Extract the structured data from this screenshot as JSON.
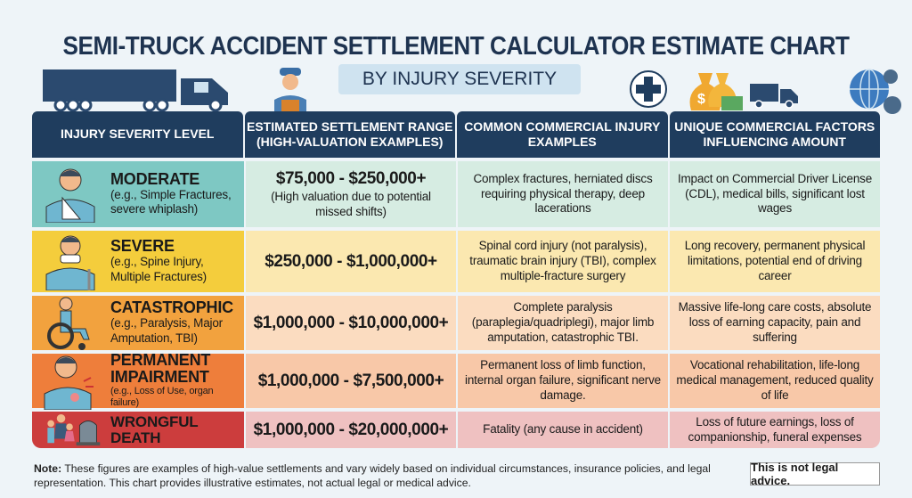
{
  "title": "SEMI-TRUCK ACCIDENT SETTLEMENT CALCULATOR ESTIMATE CHART",
  "subtitle": "BY INJURY SEVERITY",
  "headers": [
    "INJURY SEVERITY LEVEL",
    "ESTIMATED SETTLEMENT RANGE (HIGH-VALUATION EXAMPLES)",
    "COMMON COMMERCIAL INJURY EXAMPLES",
    "UNIQUE COMMERCIAL FACTORS INFLUENCING AMOUNT"
  ],
  "colors": {
    "header": "#1f3d5e",
    "title": "#1e3350"
  },
  "rows": [
    {
      "level": "MODERATE",
      "examples_short": "(e.g., Simple Fractures, severe whiplash)",
      "range": "$75,000 - $250,000+",
      "range_note": "(High valuation due to potential missed shifts)",
      "injuries": "Complex fractures, herniated discs requiring physical therapy, deep lacerations",
      "factors": "Impact on Commercial Driver License (CDL), medical bills, significant lost wages",
      "icon": "arm-sling-person-icon",
      "color": "#7ec8c3",
      "tint": "#d6ece2"
    },
    {
      "level": "SEVERE",
      "examples_short": "(e.g., Spine Injury, Multiple Fractures)",
      "range": "$250,000 - $1,000,000+",
      "range_note": "",
      "injuries": "Spinal cord injury (not paralysis), traumatic brain injury (TBI), complex multiple-fracture surgery",
      "factors": "Long recovery, permanent physical limitations, potential end of driving career",
      "icon": "neck-brace-person-icon",
      "color": "#f4cd3c",
      "tint": "#fbe8b0"
    },
    {
      "level": "CATASTROPHIC",
      "examples_short": "(e.g., Paralysis, Major Amputation, TBI)",
      "range": "$1,000,000 - $10,000,000+",
      "range_note": "",
      "injuries": "Complete paralysis (paraplegia/quadriplegi), major limb amputation, catastrophic TBI.",
      "factors": "Massive life-long care costs, absolute loss of earning capacity, pain and suffering",
      "icon": "wheelchair-icon",
      "color": "#f2a23e",
      "tint": "#fbdcc0"
    },
    {
      "level": "PERMANENT IMPAIRMENT",
      "examples_short": "(e.g., Loss of Use, organ failure)",
      "range": "$1,000,000 - $7,500,000+",
      "range_note": "",
      "injuries": "Permanent loss of limb function, internal organ failure, significant nerve damage.",
      "factors": "Vocational rehabilitation, life-long medical management, reduced quality of life",
      "icon": "pain-person-icon",
      "color": "#ee7e3b",
      "tint": "#f8c8a8"
    },
    {
      "level": "WRONGFUL DEATH",
      "examples_short": "",
      "range": "$1,000,000 - $20,000,000+",
      "range_note": "",
      "injuries": "Fatality (any cause in accident)",
      "factors": "Loss of future earnings, loss of companionship, funeral expenses",
      "icon": "family-gravestone-icon",
      "color": "#cc3d3d",
      "tint": "#efc1c1"
    }
  ],
  "note_label": "Note:",
  "note": " These figures are examples of high-value settlements and vary widely based on individual circumstances, insurance policies, and legal representation. This chart provides illustrative estimates, not actual legal or medical advice.",
  "disclaimer": "This is not legal advice."
}
